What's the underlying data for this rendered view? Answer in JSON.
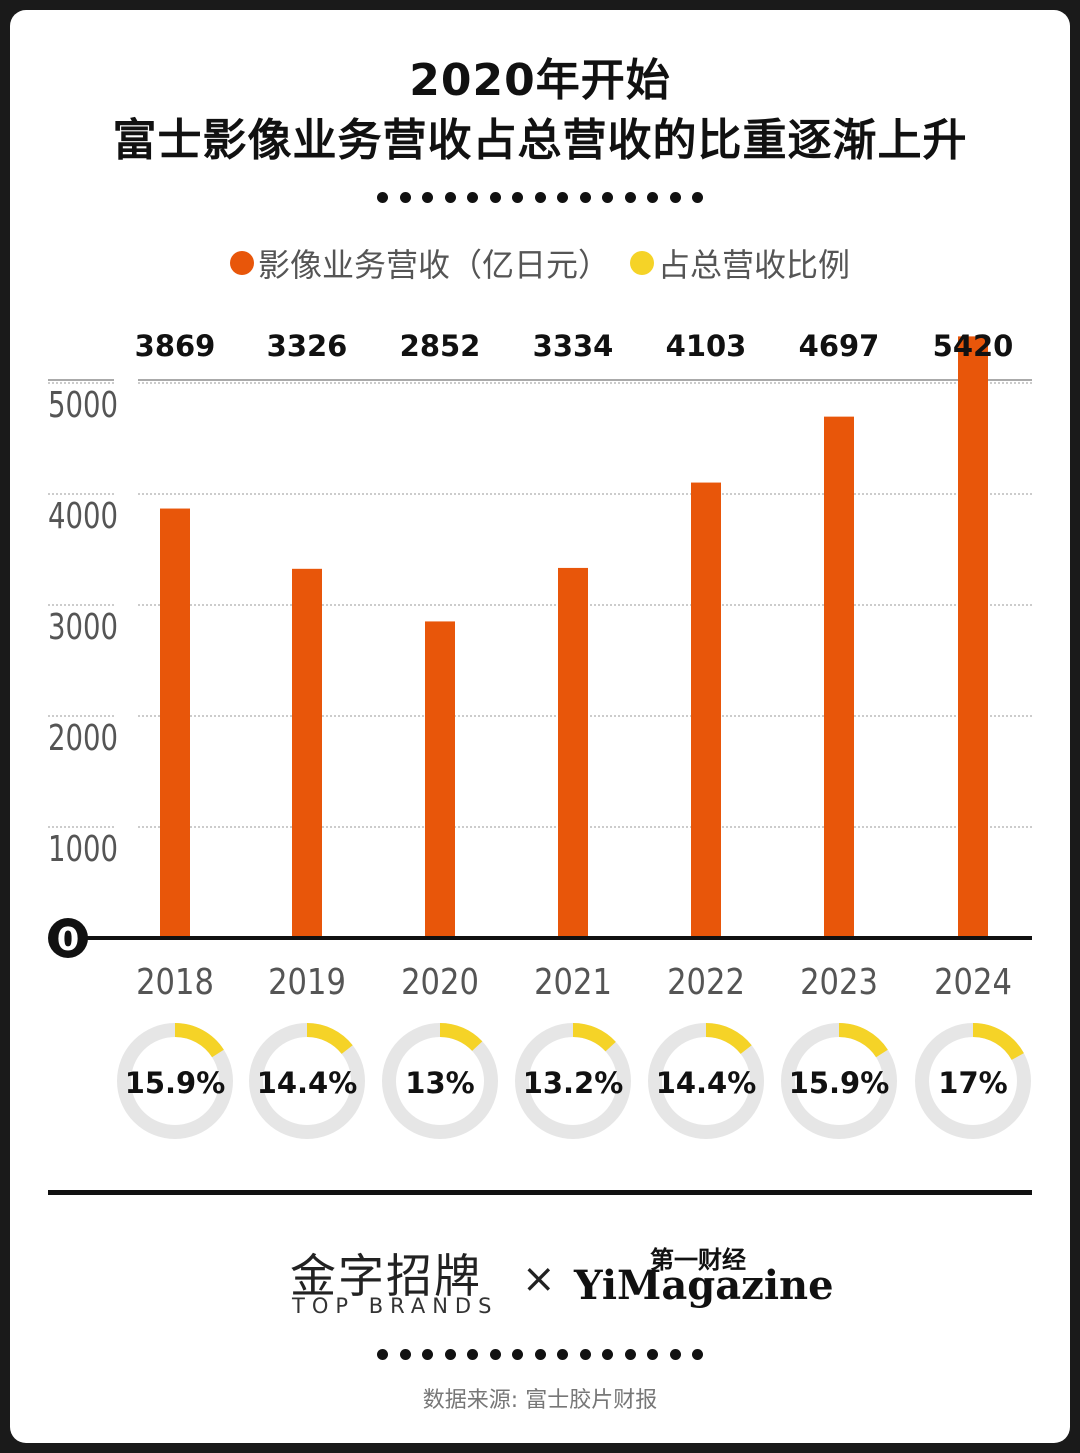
{
  "chart_data": {
    "type": "bar",
    "title": "2020年开始",
    "subtitle": "富士影像业务营收占总营收的比重逐渐上升",
    "legend": [
      {
        "label": "影像业务营收（亿日元）",
        "color": "#e8560a"
      },
      {
        "label": "占总营收比例",
        "color": "#f5d327"
      }
    ],
    "categories": [
      "2018",
      "2019",
      "2020",
      "2021",
      "2022",
      "2023",
      "2024"
    ],
    "series": [
      {
        "name": "影像业务营收（亿日元）",
        "values": [
          3869,
          3326,
          2852,
          3334,
          4103,
          4697,
          5420
        ],
        "color": "#e8560a"
      },
      {
        "name": "占总营收比例",
        "values": [
          15.9,
          14.4,
          13,
          13.2,
          14.4,
          15.9,
          17
        ],
        "color": "#f5d327"
      }
    ],
    "value_labels": [
      "3869",
      "3326",
      "2852",
      "3334",
      "4103",
      "4697",
      "5420"
    ],
    "percent_labels": [
      "15.9%",
      "14.4%",
      "13%",
      "13.2%",
      "14.4%",
      "15.9%",
      "17%"
    ],
    "y_ticks": [
      "0",
      "1000",
      "2000",
      "3000",
      "4000",
      "5000"
    ],
    "ylim": [
      0,
      5000
    ],
    "grid": true
  },
  "footer": {
    "brand_cn": "金字招牌",
    "brand_en": "TOP BRANDS",
    "times": "×",
    "partner_cn": "第一财经",
    "partner_en": "YiMagazine",
    "source": "数据来源: 富士胶片财报"
  },
  "colors": {
    "bar": "#e8560a",
    "ring": "#f5d327",
    "ring_bg": "#e6e6e6"
  }
}
